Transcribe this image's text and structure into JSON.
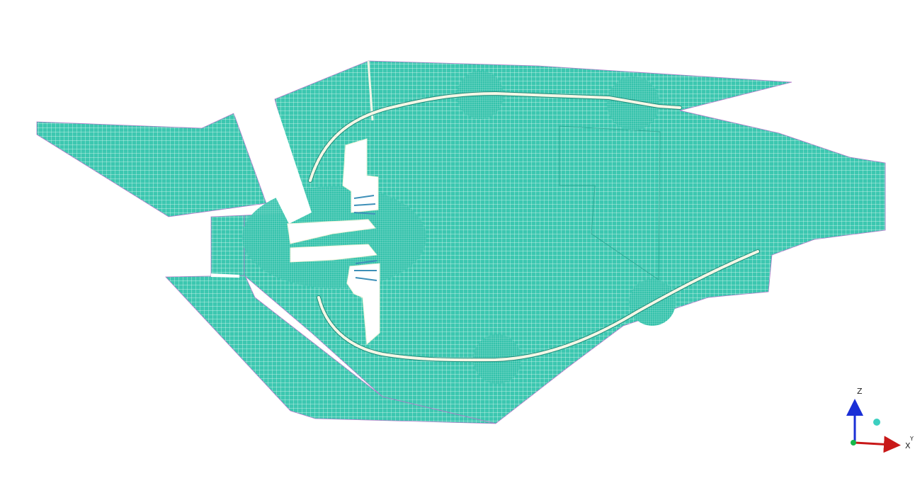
{
  "view": {
    "background": "#ffffff",
    "mesh_fill": "#3cc7b0",
    "mesh_line": "#2fb59f",
    "refine_fill": "#33c4ad",
    "channel_color": "#f4f7e6",
    "channel_edge": "#1f8a7a",
    "outline_color": "#b07ac8"
  },
  "triad": {
    "z_label": "Z",
    "x_label": "X",
    "y_label": "Y",
    "z_color": "#1a2fd6",
    "x_color": "#c81818",
    "y_color": "#17b84a",
    "marker_color": "#3ccfc0",
    "z_icon": "arrow-up-icon",
    "x_icon": "arrow-right-icon"
  }
}
